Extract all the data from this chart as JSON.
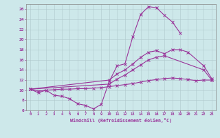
{
  "xlabel": "Windchill (Refroidissement éolien,°C)",
  "background_color": "#cde8ea",
  "grid_color": "#b0c8cc",
  "line_color": "#993399",
  "xlim": [
    -0.5,
    23.5
  ],
  "ylim": [
    6,
    27
  ],
  "yticks": [
    6,
    8,
    10,
    12,
    14,
    16,
    18,
    20,
    22,
    24,
    26
  ],
  "xticks": [
    0,
    1,
    2,
    3,
    4,
    5,
    6,
    7,
    8,
    9,
    10,
    11,
    12,
    13,
    14,
    15,
    16,
    17,
    18,
    19,
    20,
    21,
    22,
    23
  ],
  "line1_x": [
    0,
    1,
    2,
    3,
    4,
    5,
    6,
    7,
    8,
    9,
    10,
    11,
    12,
    13,
    14,
    15,
    16,
    17,
    18,
    19
  ],
  "line1_y": [
    10.2,
    9.5,
    10.0,
    9.0,
    8.8,
    8.3,
    7.3,
    7.0,
    6.3,
    7.2,
    11.7,
    14.8,
    15.2,
    20.6,
    25.0,
    26.5,
    26.3,
    24.8,
    23.5,
    21.3
  ],
  "line2_x": [
    0,
    10,
    11,
    12,
    13,
    14,
    15,
    16,
    17,
    18,
    19,
    20,
    22,
    23
  ],
  "line2_y": [
    10.2,
    12.0,
    13.2,
    14.0,
    15.2,
    16.5,
    17.5,
    17.8,
    17.2,
    18.0,
    18.0,
    17.5,
    14.8,
    12.3
  ],
  "line3_x": [
    0,
    10,
    11,
    12,
    13,
    14,
    15,
    16,
    17,
    22,
    23
  ],
  "line3_y": [
    10.2,
    11.2,
    12.2,
    13.0,
    14.0,
    15.0,
    16.0,
    16.5,
    16.8,
    14.0,
    12.0
  ],
  "line4_x": [
    0,
    1,
    2,
    3,
    4,
    5,
    6,
    7,
    8,
    9,
    10,
    11,
    12,
    13,
    14,
    15,
    16,
    17,
    18,
    19,
    20,
    21,
    22,
    23
  ],
  "line4_y": [
    10.2,
    9.8,
    10.0,
    10.1,
    10.2,
    10.2,
    10.3,
    10.3,
    10.4,
    10.5,
    10.7,
    10.9,
    11.1,
    11.3,
    11.6,
    11.9,
    12.1,
    12.3,
    12.4,
    12.3,
    12.1,
    11.9,
    12.0,
    12.0
  ]
}
